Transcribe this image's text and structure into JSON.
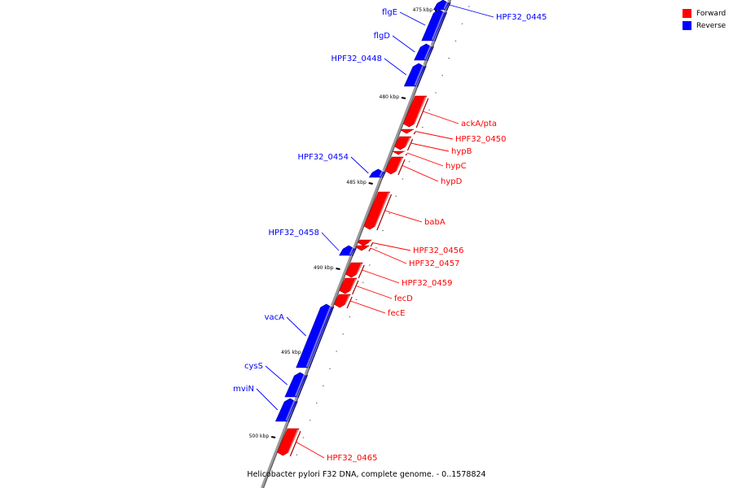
{
  "legend": {
    "forward_label": "Forward",
    "reverse_label": "Reverse",
    "forward_color": "#ff0000",
    "reverse_color": "#0000ff"
  },
  "footer": "Helicobacter pylori F32 DNA, complete genome. - 0..1578824",
  "ruler_labels": [
    "475 kbp",
    "480 kbp",
    "485 kbp",
    "490 kbp",
    "495 kbp",
    "500 kbp"
  ],
  "genes": [
    {
      "name": "flgE",
      "strand": "reverse"
    },
    {
      "name": "HPF32_0445",
      "strand": "reverse"
    },
    {
      "name": "flgD",
      "strand": "reverse"
    },
    {
      "name": "HPF32_0448",
      "strand": "reverse"
    },
    {
      "name": "ackA/pta",
      "strand": "forward"
    },
    {
      "name": "HPF32_0450",
      "strand": "forward"
    },
    {
      "name": "hypB",
      "strand": "forward"
    },
    {
      "name": "hypC",
      "strand": "forward"
    },
    {
      "name": "hypD",
      "strand": "forward"
    },
    {
      "name": "HPF32_0454",
      "strand": "reverse"
    },
    {
      "name": "babA",
      "strand": "forward"
    },
    {
      "name": "HPF32_0458",
      "strand": "reverse"
    },
    {
      "name": "HPF32_0456",
      "strand": "forward"
    },
    {
      "name": "HPF32_0457",
      "strand": "forward"
    },
    {
      "name": "HPF32_0459",
      "strand": "forward"
    },
    {
      "name": "fecD",
      "strand": "forward"
    },
    {
      "name": "fecE",
      "strand": "forward"
    },
    {
      "name": "vacA",
      "strand": "reverse"
    },
    {
      "name": "cysS",
      "strand": "reverse"
    },
    {
      "name": "mviN",
      "strand": "reverse"
    },
    {
      "name": "HPF32_0465",
      "strand": "forward"
    }
  ]
}
